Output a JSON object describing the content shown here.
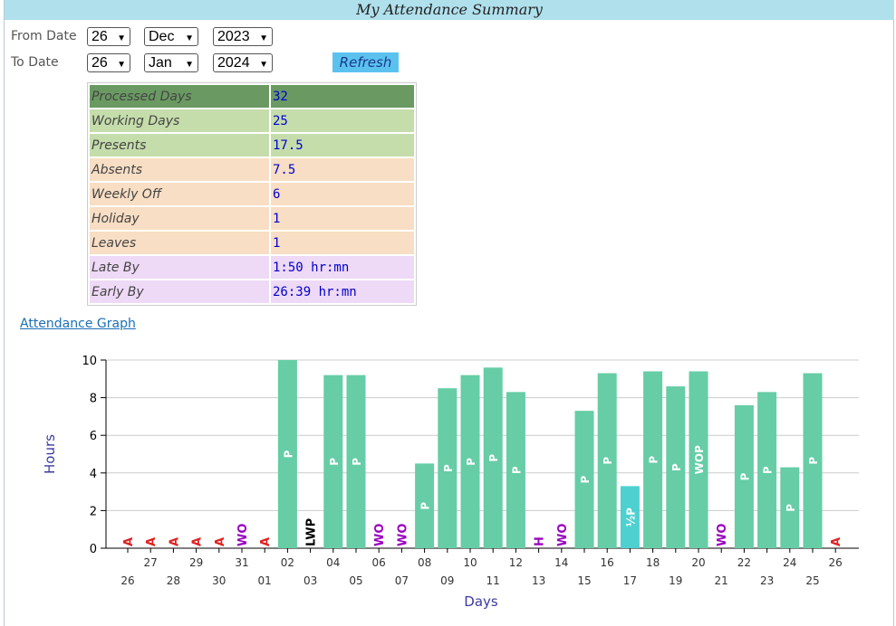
{
  "title": "My Attendance Summary",
  "form": {
    "from_label": "From Date",
    "to_label": "To Date",
    "from": {
      "day": "26",
      "month": "Dec",
      "year": "2023"
    },
    "to": {
      "day": "26",
      "month": "Jan",
      "year": "2024"
    },
    "refresh_label": "Refresh"
  },
  "summary": [
    {
      "label": "Processed Days",
      "value": "32",
      "bg": "#6a9a62"
    },
    {
      "label": "Working Days",
      "value": "25",
      "bg": "#c5ddab"
    },
    {
      "label": "Presents",
      "value": "17.5",
      "bg": "#c5ddab"
    },
    {
      "label": "Absents",
      "value": "7.5",
      "bg": "#f8dec4"
    },
    {
      "label": "Weekly Off",
      "value": "6",
      "bg": "#f8dec4"
    },
    {
      "label": "Holiday",
      "value": "1",
      "bg": "#f8dec4"
    },
    {
      "label": "Leaves",
      "value": "1",
      "bg": "#f8dec4"
    },
    {
      "label": "Late By",
      "value": "1:50 hr:mn",
      "bg": "#eed9f6"
    },
    {
      "label": "Early By",
      "value": "26:39 hr:mn",
      "bg": "#eed9f6"
    }
  ],
  "graph_link": "Attendance Graph",
  "chart_data": {
    "type": "bar",
    "xlabel": "Days",
    "ylabel": "Hours",
    "ylim": [
      0,
      10
    ],
    "yticks": [
      0,
      2,
      4,
      6,
      8,
      10
    ],
    "grid": true,
    "colors": {
      "present": "#66cda6",
      "half": "#4fd0d0",
      "absent": "#e02020",
      "wo": "#9a00c0",
      "holiday": "#9a00c0",
      "lwp": "#000000",
      "axis": "#3a3aa0"
    },
    "days": [
      {
        "day": "26",
        "hours": 0,
        "status": "A"
      },
      {
        "day": "27",
        "hours": 0,
        "status": "A"
      },
      {
        "day": "28",
        "hours": 0,
        "status": "A"
      },
      {
        "day": "29",
        "hours": 0,
        "status": "A"
      },
      {
        "day": "30",
        "hours": 0,
        "status": "A"
      },
      {
        "day": "31",
        "hours": 0,
        "status": "WO"
      },
      {
        "day": "01",
        "hours": 0,
        "status": "A"
      },
      {
        "day": "02",
        "hours": 10.0,
        "status": "P"
      },
      {
        "day": "03",
        "hours": 0,
        "status": "LWP"
      },
      {
        "day": "04",
        "hours": 9.2,
        "status": "P"
      },
      {
        "day": "05",
        "hours": 9.2,
        "status": "P"
      },
      {
        "day": "06",
        "hours": 0,
        "status": "WO"
      },
      {
        "day": "07",
        "hours": 0,
        "status": "WO"
      },
      {
        "day": "08",
        "hours": 4.5,
        "status": "P"
      },
      {
        "day": "09",
        "hours": 8.5,
        "status": "P"
      },
      {
        "day": "10",
        "hours": 9.2,
        "status": "P"
      },
      {
        "day": "11",
        "hours": 9.6,
        "status": "P"
      },
      {
        "day": "12",
        "hours": 8.3,
        "status": "P"
      },
      {
        "day": "13",
        "hours": 0,
        "status": "H"
      },
      {
        "day": "14",
        "hours": 0,
        "status": "WO"
      },
      {
        "day": "15",
        "hours": 7.3,
        "status": "P"
      },
      {
        "day": "16",
        "hours": 9.3,
        "status": "P"
      },
      {
        "day": "17",
        "hours": 3.3,
        "status": "½P"
      },
      {
        "day": "18",
        "hours": 9.4,
        "status": "P"
      },
      {
        "day": "19",
        "hours": 8.6,
        "status": "P"
      },
      {
        "day": "20",
        "hours": 9.4,
        "status": "WOP"
      },
      {
        "day": "21",
        "hours": 0,
        "status": "WO"
      },
      {
        "day": "22",
        "hours": 7.6,
        "status": "P"
      },
      {
        "day": "23",
        "hours": 8.3,
        "status": "P"
      },
      {
        "day": "24",
        "hours": 4.3,
        "status": "P"
      },
      {
        "day": "25",
        "hours": 9.3,
        "status": "P"
      },
      {
        "day": "26",
        "hours": 0,
        "status": "A"
      }
    ]
  }
}
